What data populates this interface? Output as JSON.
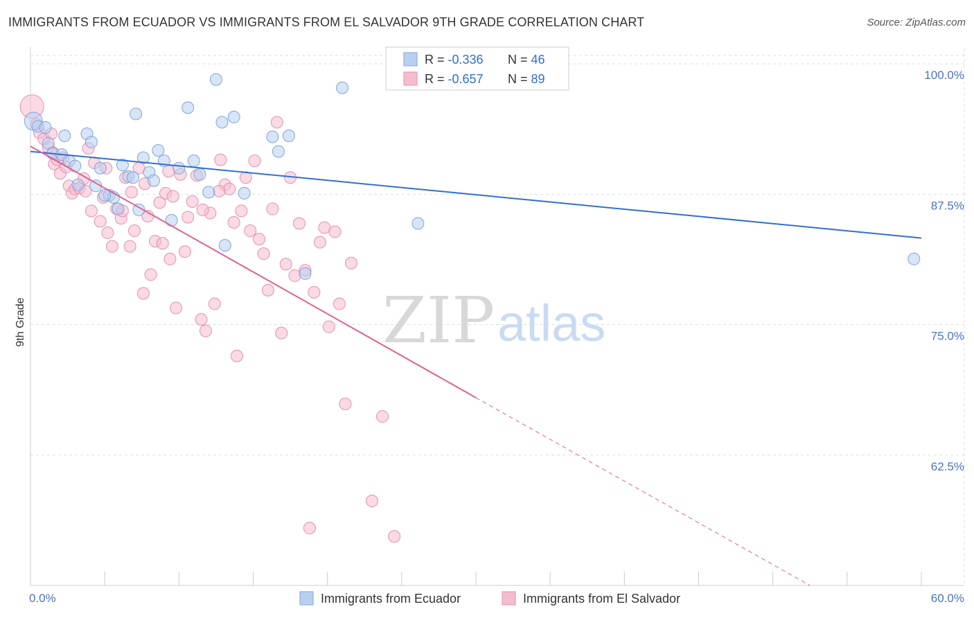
{
  "header": {
    "title": "IMMIGRANTS FROM ECUADOR VS IMMIGRANTS FROM EL SALVADOR 9TH GRADE CORRELATION CHART",
    "source": "Source: ZipAtlas.com"
  },
  "colors": {
    "blue": "#2f6fd0",
    "blue_fill": "#b8d0f0",
    "pink": "#e0608f",
    "pink_fill": "#f5bcd0",
    "grid": "#dddddd",
    "tick_label": "#4a72c4"
  },
  "watermark": {
    "zip": "ZIP",
    "atlas": "atlas"
  },
  "chart_data": {
    "type": "scatter",
    "title": "IMMIGRANTS FROM ECUADOR VS IMMIGRANTS FROM EL SALVADOR 9TH GRADE CORRELATION CHART",
    "xlabel": "",
    "ylabel": "9th Grade",
    "xlim": [
      0,
      60
    ],
    "ylim": [
      50,
      102
    ],
    "x_tick_labels": [
      "0.0%",
      "60.0%"
    ],
    "y_ticks": [
      62.5,
      75.0,
      87.5,
      100.0
    ],
    "y_tick_labels": [
      "62.5%",
      "75.0%",
      "87.5%",
      "100.0%"
    ],
    "grid": true,
    "legend_position": "bottom",
    "stats": [
      {
        "r_label": "R = ",
        "r_value": "-0.336",
        "n_label": "N = ",
        "n_value": "46"
      },
      {
        "r_label": "R = ",
        "r_value": "-0.657",
        "n_label": "N = ",
        "n_value": "89"
      }
    ],
    "series": [
      {
        "name": "Immigrants from Ecuador",
        "color": "#2f6fd0",
        "trend": {
          "x": [
            0,
            60
          ],
          "y": [
            91.6,
            83.3
          ]
        },
        "points": [
          [
            0.2,
            94.5
          ],
          [
            0.5,
            94.0
          ],
          [
            1.0,
            93.9
          ],
          [
            1.2,
            92.4
          ],
          [
            1.5,
            91.4
          ],
          [
            2.1,
            91.3
          ],
          [
            2.3,
            93.1
          ],
          [
            2.6,
            90.7
          ],
          [
            3.0,
            90.2
          ],
          [
            3.8,
            93.3
          ],
          [
            4.1,
            92.5
          ],
          [
            4.7,
            90.0
          ],
          [
            5.3,
            87.4
          ],
          [
            5.6,
            87.2
          ],
          [
            5.9,
            86.1
          ],
          [
            6.2,
            90.3
          ],
          [
            6.6,
            89.2
          ],
          [
            7.1,
            95.2
          ],
          [
            7.3,
            86.0
          ],
          [
            7.6,
            91.0
          ],
          [
            8.0,
            89.6
          ],
          [
            8.3,
            88.8
          ],
          [
            8.6,
            91.7
          ],
          [
            9.0,
            90.7
          ],
          [
            9.5,
            85.0
          ],
          [
            10.0,
            90.0
          ],
          [
            10.6,
            95.8
          ],
          [
            11.0,
            90.7
          ],
          [
            11.4,
            89.4
          ],
          [
            12.0,
            87.7
          ],
          [
            12.5,
            98.5
          ],
          [
            12.9,
            94.4
          ],
          [
            13.1,
            82.6
          ],
          [
            13.7,
            94.9
          ],
          [
            14.4,
            87.6
          ],
          [
            16.3,
            93.0
          ],
          [
            16.7,
            91.6
          ],
          [
            17.4,
            93.1
          ],
          [
            18.5,
            79.9
          ],
          [
            21.0,
            97.7
          ],
          [
            26.1,
            84.7
          ],
          [
            59.5,
            81.3
          ],
          [
            3.2,
            88.4
          ],
          [
            4.4,
            88.3
          ],
          [
            5.0,
            87.4
          ],
          [
            6.9,
            89.1
          ]
        ]
      },
      {
        "name": "Immigrants from El Salvador",
        "color": "#e0608f",
        "trend": {
          "x": [
            0,
            30
          ],
          "y": [
            92.1,
            68.0
          ]
        },
        "trend_dashed": {
          "x": [
            30,
            60
          ],
          "y": [
            68.0,
            44.0
          ]
        },
        "points": [
          [
            0.1,
            95.9
          ],
          [
            0.4,
            94.2
          ],
          [
            0.6,
            93.4
          ],
          [
            0.9,
            92.8
          ],
          [
            1.2,
            92.0
          ],
          [
            1.5,
            91.5
          ],
          [
            1.6,
            90.4
          ],
          [
            1.8,
            90.8
          ],
          [
            2.0,
            89.5
          ],
          [
            2.2,
            91.0
          ],
          [
            2.4,
            90.1
          ],
          [
            2.6,
            88.3
          ],
          [
            2.8,
            87.6
          ],
          [
            3.0,
            88.0
          ],
          [
            3.3,
            88.1
          ],
          [
            3.6,
            89.0
          ],
          [
            3.9,
            91.9
          ],
          [
            4.1,
            85.9
          ],
          [
            4.3,
            90.5
          ],
          [
            4.7,
            84.9
          ],
          [
            4.9,
            87.2
          ],
          [
            5.2,
            83.8
          ],
          [
            5.5,
            82.5
          ],
          [
            5.8,
            86.1
          ],
          [
            6.1,
            85.2
          ],
          [
            6.4,
            89.1
          ],
          [
            6.7,
            82.5
          ],
          [
            6.8,
            87.7
          ],
          [
            7.0,
            84.0
          ],
          [
            7.3,
            90.0
          ],
          [
            7.6,
            78.0
          ],
          [
            7.9,
            85.4
          ],
          [
            8.1,
            79.8
          ],
          [
            8.4,
            83.0
          ],
          [
            8.7,
            86.7
          ],
          [
            8.9,
            82.8
          ],
          [
            9.1,
            87.6
          ],
          [
            9.4,
            81.3
          ],
          [
            9.6,
            87.3
          ],
          [
            9.8,
            76.6
          ],
          [
            10.1,
            89.4
          ],
          [
            10.4,
            82.0
          ],
          [
            10.6,
            85.3
          ],
          [
            10.9,
            86.8
          ],
          [
            11.2,
            89.3
          ],
          [
            11.5,
            75.5
          ],
          [
            11.8,
            74.4
          ],
          [
            12.1,
            85.7
          ],
          [
            12.4,
            77.0
          ],
          [
            12.8,
            90.8
          ],
          [
            13.1,
            88.4
          ],
          [
            13.4,
            88.0
          ],
          [
            13.7,
            84.8
          ],
          [
            13.9,
            72.0
          ],
          [
            14.2,
            85.9
          ],
          [
            14.5,
            89.1
          ],
          [
            14.8,
            84.0
          ],
          [
            15.1,
            90.7
          ],
          [
            15.4,
            83.2
          ],
          [
            15.7,
            81.8
          ],
          [
            16.0,
            78.3
          ],
          [
            16.3,
            86.1
          ],
          [
            16.6,
            94.4
          ],
          [
            16.9,
            74.2
          ],
          [
            17.2,
            80.8
          ],
          [
            17.5,
            89.1
          ],
          [
            17.8,
            79.7
          ],
          [
            18.1,
            84.7
          ],
          [
            18.5,
            80.2
          ],
          [
            18.8,
            55.5
          ],
          [
            19.1,
            78.1
          ],
          [
            19.5,
            82.9
          ],
          [
            19.8,
            84.3
          ],
          [
            20.1,
            74.8
          ],
          [
            20.5,
            83.9
          ],
          [
            20.8,
            77.0
          ],
          [
            21.2,
            67.4
          ],
          [
            21.6,
            80.9
          ],
          [
            23.0,
            58.1
          ],
          [
            23.7,
            66.2
          ],
          [
            24.5,
            54.7
          ],
          [
            5.1,
            90.0
          ],
          [
            7.7,
            88.5
          ],
          [
            9.3,
            89.7
          ],
          [
            11.6,
            86.0
          ],
          [
            12.7,
            87.8
          ],
          [
            3.7,
            87.8
          ],
          [
            6.2,
            85.9
          ],
          [
            1.4,
            93.3
          ]
        ]
      }
    ]
  },
  "legend": {
    "items": [
      {
        "label": "Immigrants from Ecuador"
      },
      {
        "label": "Immigrants from El Salvador"
      }
    ]
  }
}
